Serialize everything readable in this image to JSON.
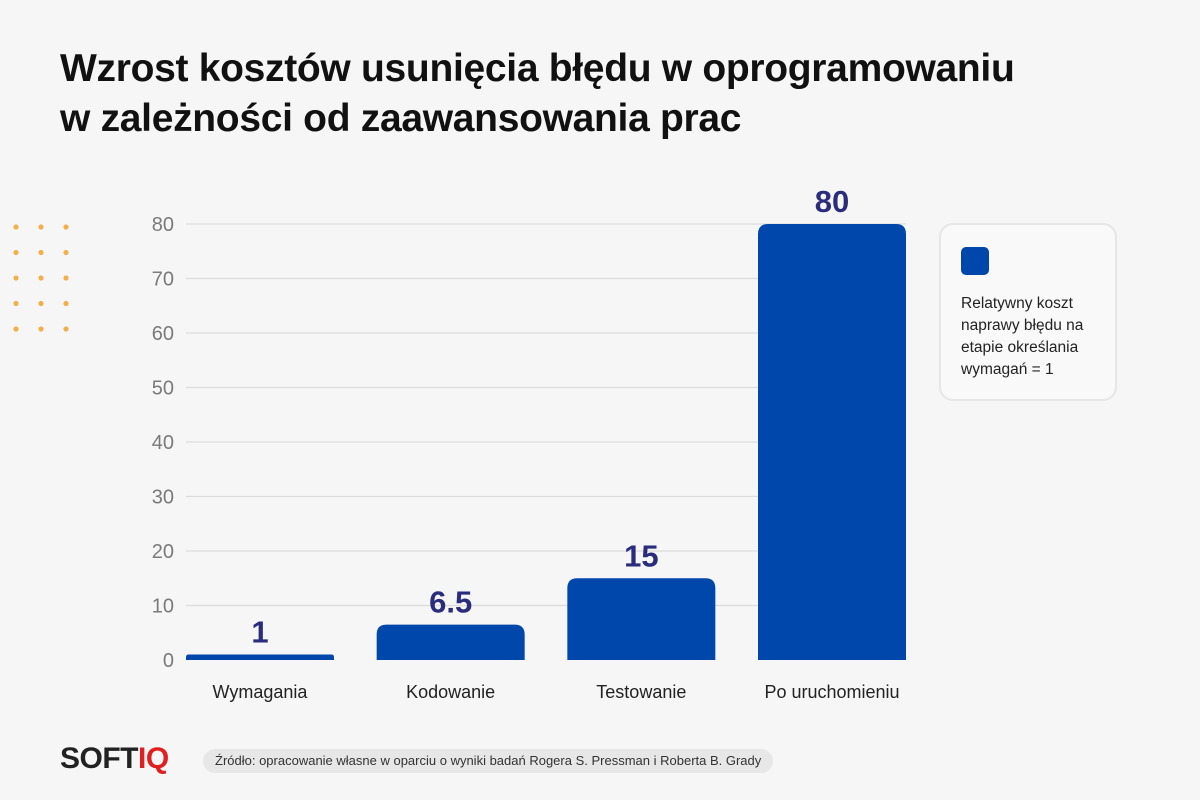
{
  "title_lines": [
    "Wzrost kosztów usunięcia błędu w oprogramowaniu",
    "w zależności od zaawansowania prac"
  ],
  "chart_data": {
    "type": "bar",
    "categories": [
      "Wymagania",
      "Kodowanie",
      "Testowanie",
      "Po uruchomieniu"
    ],
    "values": [
      1,
      6.5,
      15,
      80
    ],
    "data_labels": [
      "1",
      "6.5",
      "15",
      "80"
    ],
    "ylim": [
      0,
      80
    ],
    "yticks": [
      0,
      10,
      20,
      30,
      40,
      50,
      60,
      70,
      80
    ],
    "grid": true,
    "legend": "right",
    "bar_color": "#0047ab",
    "label_color": "#2b2c7c"
  },
  "legend_text": "Relatywny koszt naprawy błędu na etapie określania wymagań = 1",
  "logo": {
    "part1": "SOFT",
    "part2": "IQ",
    "color1": "#222222",
    "color2": "#e02020"
  },
  "source_text": "Źródło: opracowanie własne w oparciu o wyniki badań Rogera S. Pressman i Roberta B. Grady",
  "dots_color": "#f2b04a"
}
